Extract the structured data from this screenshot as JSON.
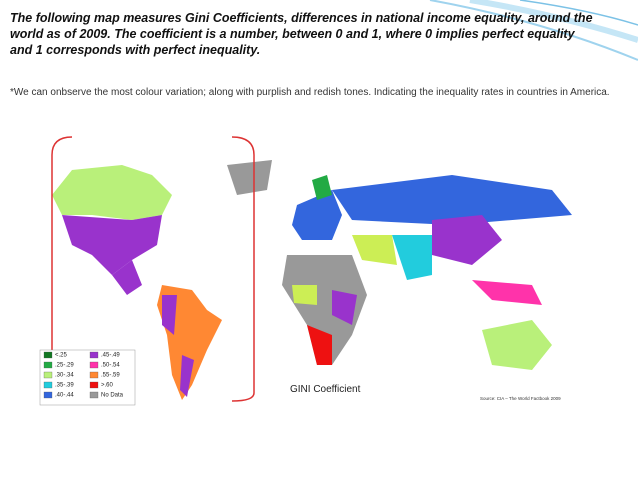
{
  "title": "The following map measures Gini Coefficients, differences in national income equality, around the world as of 2009. The coefficient is a number, between 0 and 1, where 0 implies perfect equality and 1 corresponds with perfect inequality.",
  "note": "*We can onbserve the most colour variation; along with purplish and redish tones. Indicating the inequality rates in countries in America.",
  "caption": "GINI Coefficient",
  "source": "Source: CIA – The World Factbook 2009",
  "legend": [
    {
      "label": "<.25",
      "color": "#117722"
    },
    {
      "label": ".25-.29",
      "color": "#22aa44"
    },
    {
      "label": ".30-.34",
      "color": "#b9f07a"
    },
    {
      "label": ".35-.39",
      "color": "#22ccdd"
    },
    {
      "label": ".40-.44",
      "color": "#3366dd"
    },
    {
      "label": ".45-.49",
      "color": "#9933cc"
    },
    {
      "label": ".50-.54",
      "color": "#ff33aa"
    },
    {
      "label": ".55-.59",
      "color": "#ff8833"
    },
    {
      "label": ">.60",
      "color": "#ee1111"
    },
    {
      "label": "No Data",
      "color": "#999999"
    }
  ]
}
